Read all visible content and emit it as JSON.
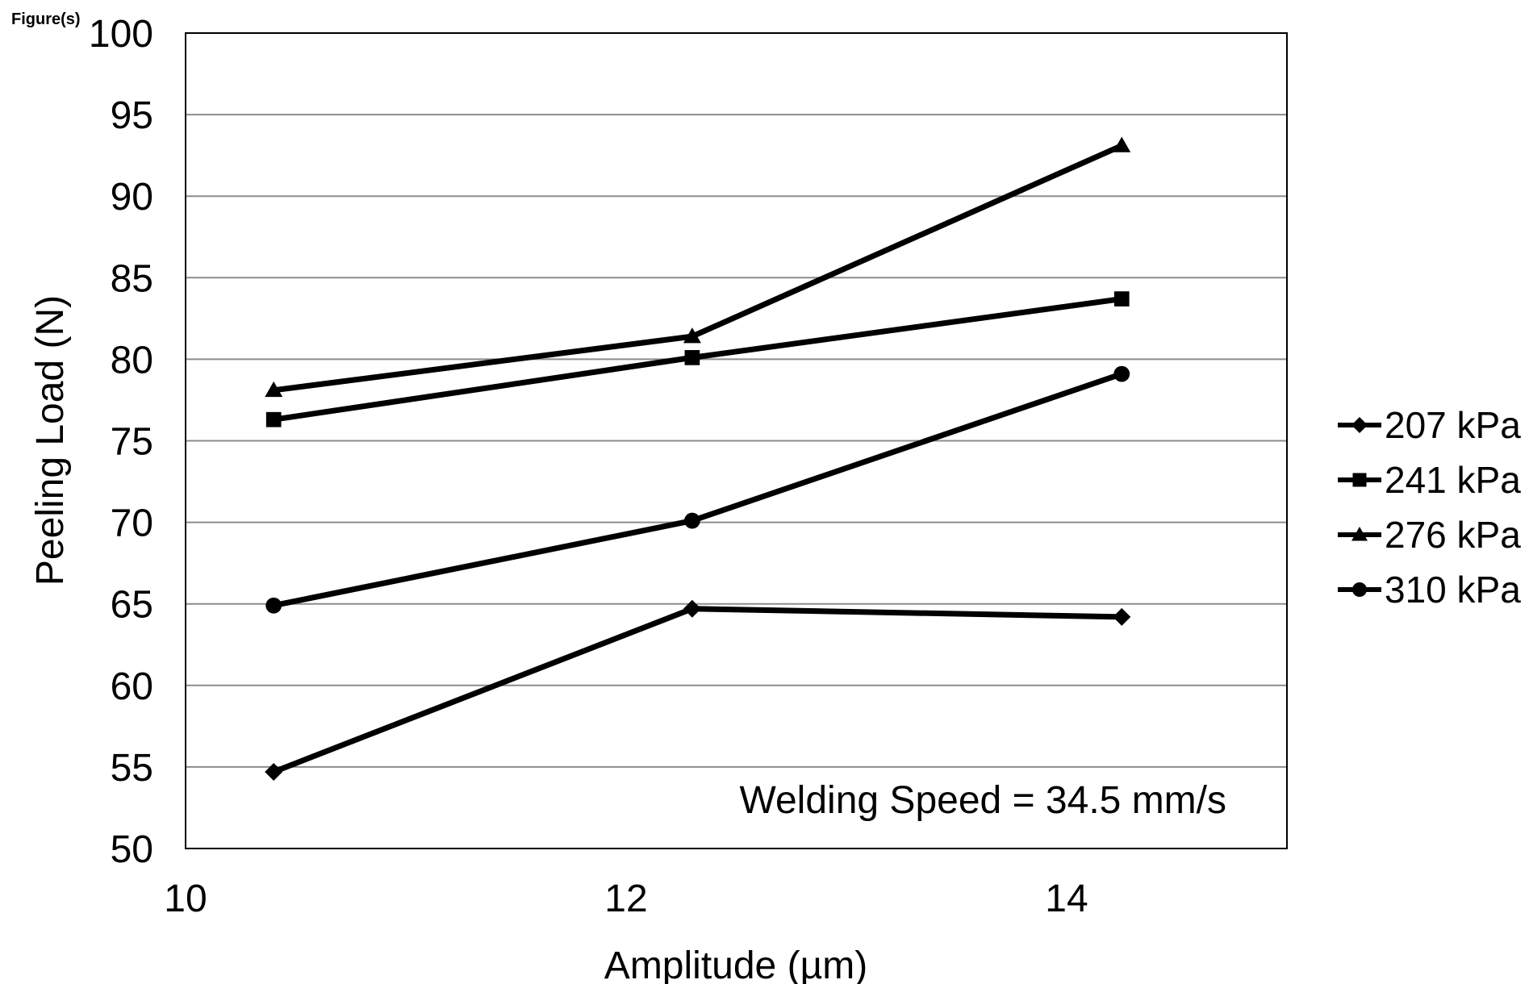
{
  "page": {
    "corner_label": "Figure(s)"
  },
  "chart_data": {
    "type": "line",
    "title": "",
    "xlabel": "Amplitude (µm)",
    "ylabel": "Peeling Load (N)",
    "xlim": [
      10,
      15
    ],
    "ylim": [
      50,
      100
    ],
    "x_ticks": [
      10,
      12,
      14
    ],
    "x_tick_labels": [
      "10",
      "12",
      "14"
    ],
    "y_ticks": [
      50,
      55,
      60,
      65,
      70,
      75,
      80,
      85,
      90,
      95,
      100
    ],
    "y_tick_labels": [
      "50",
      "55",
      "60",
      "65",
      "70",
      "75",
      "80",
      "85",
      "90",
      "95",
      "100"
    ],
    "grid": "horizontal",
    "legend_position": "right",
    "annotation": "Welding Speed = 34.5 mm/s",
    "line_color": "#000000",
    "series": [
      {
        "name": "207 kPa",
        "marker": "diamond",
        "x": [
          10.4,
          12.3,
          14.25
        ],
        "y": [
          54.7,
          64.7,
          64.2
        ]
      },
      {
        "name": "241 kPa",
        "marker": "square",
        "x": [
          10.4,
          12.3,
          14.25
        ],
        "y": [
          76.3,
          80.1,
          83.7
        ]
      },
      {
        "name": "276 kPa",
        "marker": "triangle",
        "x": [
          10.4,
          12.3,
          14.25
        ],
        "y": [
          78.1,
          81.4,
          93.1
        ]
      },
      {
        "name": "310 kPa",
        "marker": "circle",
        "x": [
          10.4,
          12.3,
          14.25
        ],
        "y": [
          64.9,
          70.1,
          79.1
        ]
      }
    ]
  }
}
